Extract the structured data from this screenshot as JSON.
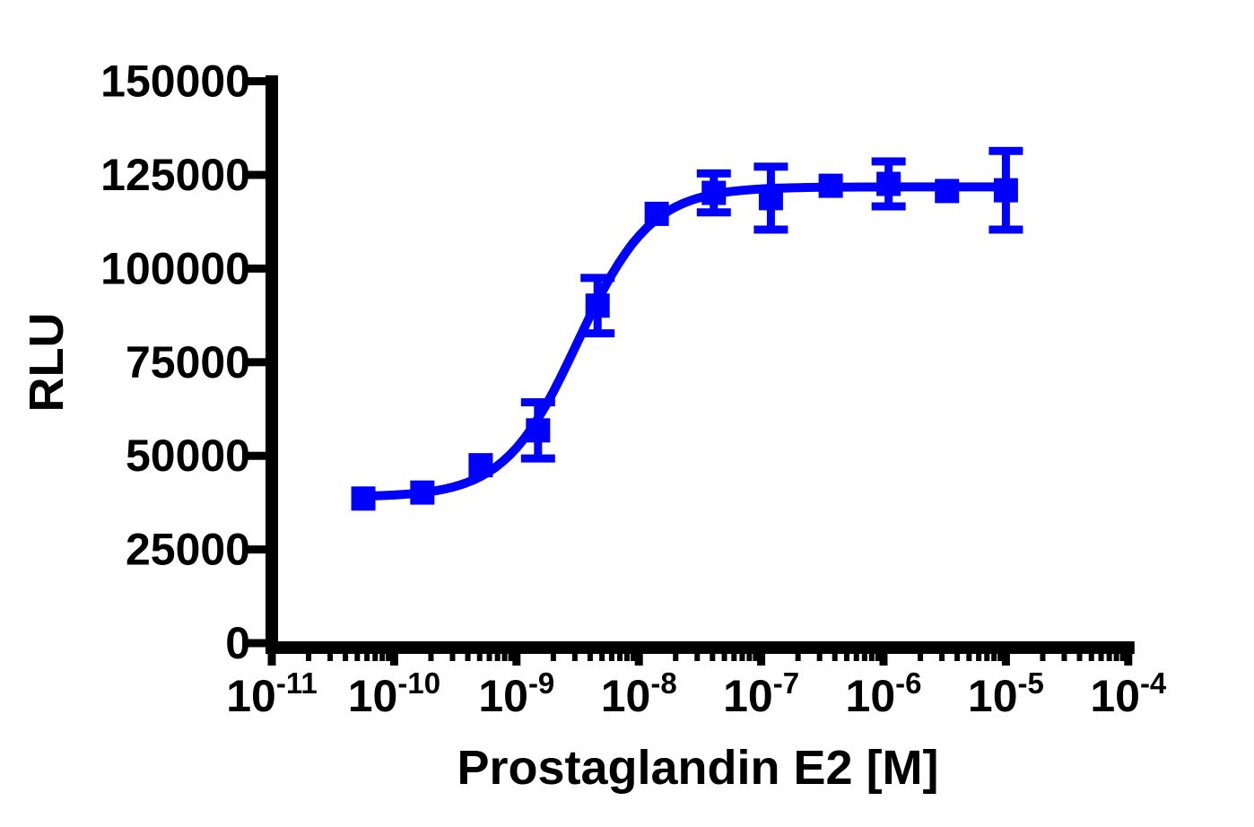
{
  "chart_data": {
    "type": "scatter",
    "subtype": "dose-response-curve-log-x",
    "title": "",
    "xlabel": "Prostaglandin E2  [M]",
    "ylabel": "RLU",
    "x_scale": "log10",
    "x_tick_base": "10",
    "x_tick_exponents": [
      -11,
      -10,
      -9,
      -8,
      -7,
      -6,
      -5,
      -4
    ],
    "x_minor_ticks": "log-decade-2-through-9",
    "ylim": [
      0,
      150000
    ],
    "y_ticks": [
      0,
      25000,
      50000,
      75000,
      100000,
      125000,
      150000
    ],
    "y_tick_labels": [
      "0",
      "25000",
      "50000",
      "75000",
      "100000",
      "125000",
      "150000"
    ],
    "grid": false,
    "legend": null,
    "series": [
      {
        "name": "Prostaglandin E2",
        "color": "#0000FF",
        "marker": "square",
        "marker_size": 27,
        "points": [
          {
            "conc_M": 5.6e-11,
            "rlu": 38600,
            "err": null
          },
          {
            "conc_M": 1.7e-10,
            "rlu": 40200,
            "err": null
          },
          {
            "conc_M": 5.1e-10,
            "rlu": 47500,
            "err": null
          },
          {
            "conc_M": 1.5e-09,
            "rlu": 56800,
            "err": 7500
          },
          {
            "conc_M": 4.6e-09,
            "rlu": 90100,
            "err": 7400
          },
          {
            "conc_M": 1.4e-08,
            "rlu": 114600,
            "err": null
          },
          {
            "conc_M": 4.1e-08,
            "rlu": 120200,
            "err": 5200
          },
          {
            "conc_M": 1.2e-07,
            "rlu": 118800,
            "err": 8400
          },
          {
            "conc_M": 3.7e-07,
            "rlu": 122100,
            "err": null
          },
          {
            "conc_M": 1.1e-06,
            "rlu": 122600,
            "err": 6000
          },
          {
            "conc_M": 3.3e-06,
            "rlu": 120700,
            "err": null
          },
          {
            "conc_M": 1e-05,
            "rlu": 120900,
            "err": 10500
          }
        ],
        "fit": {
          "model": "four-parameter-logistic",
          "bottom": 39000,
          "top": 121800,
          "log_ec50": -8.5,
          "ec50_M": 3.2e-09,
          "hill_slope": 1.45,
          "curve_log_range": [
            -10.3,
            -4.97
          ]
        }
      }
    ]
  }
}
